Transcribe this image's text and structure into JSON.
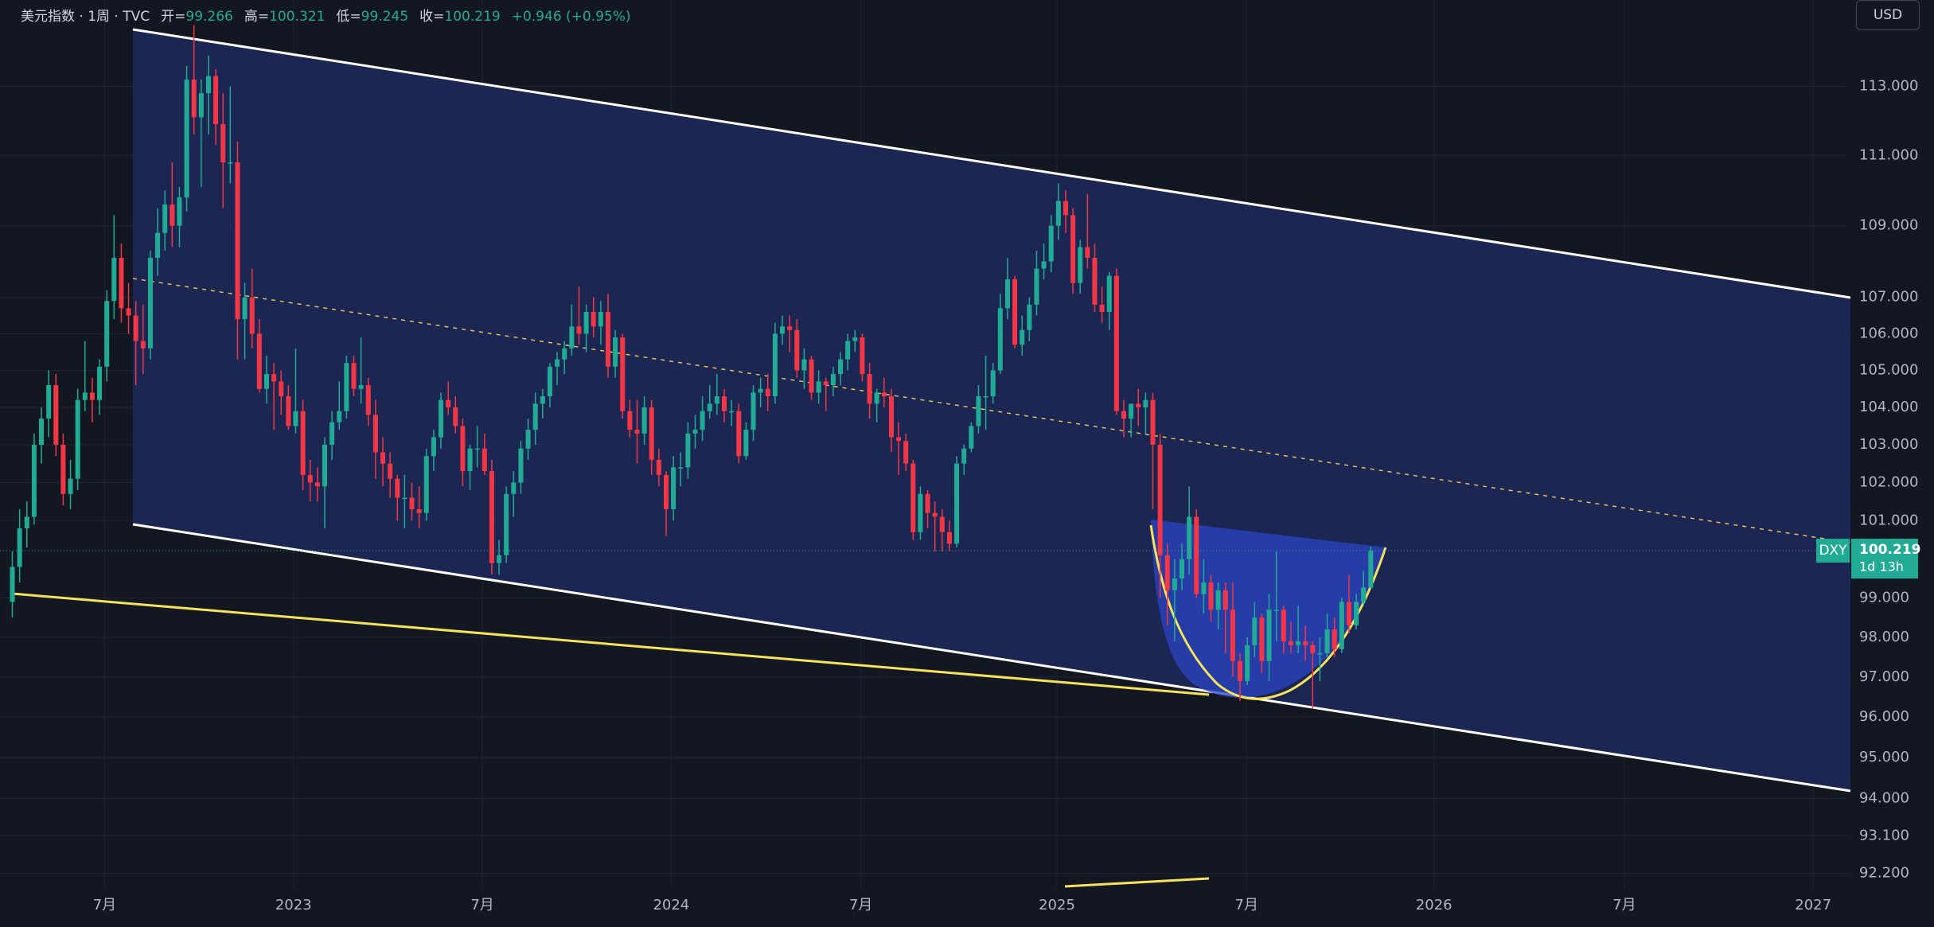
{
  "chart_data": {
    "type": "candlestick",
    "title": "美元指数 · 1周 · TVC",
    "ohlc_labels": [
      "开=",
      "高=",
      "低=",
      "收="
    ],
    "change_text": "+0.946 (+0.95%)",
    "currency": "USD",
    "symbol_tag": "DXY",
    "countdown": "1d 13h",
    "log": true,
    "grid": true,
    "up_color": "#22ab94",
    "down_color": "#f23645",
    "ylim": [
      91.85,
      115.55
    ],
    "yticks": [
      {
        "value": 113,
        "label": "113.000"
      },
      {
        "value": 111,
        "label": "111.000"
      },
      {
        "value": 109,
        "label": "109.000"
      },
      {
        "value": 107,
        "label": "107.000"
      },
      {
        "value": 106,
        "label": "106.000"
      },
      {
        "value": 105,
        "label": "105.000"
      },
      {
        "value": 104,
        "label": "104.000"
      },
      {
        "value": 103,
        "label": "103.000"
      },
      {
        "value": 102,
        "label": "102.000"
      },
      {
        "value": 101,
        "label": "101.000"
      },
      {
        "value": 99,
        "label": "99.000"
      },
      {
        "value": 98,
        "label": "98.000"
      },
      {
        "value": 97,
        "label": "97.000"
      },
      {
        "value": 96,
        "label": "96.000"
      },
      {
        "value": 95,
        "label": "95.000"
      },
      {
        "value": 94,
        "label": "94.000"
      },
      {
        "value": 93.1,
        "label": "93.100"
      },
      {
        "value": 92.2,
        "label": "92.200"
      }
    ],
    "xlim": [
      -1.7,
      252.7
    ],
    "xticks": [
      {
        "value": 12.7,
        "label": "7月"
      },
      {
        "value": 38.7,
        "label": "2023"
      },
      {
        "value": 64.7,
        "label": "7月"
      },
      {
        "value": 90.7,
        "label": "2024"
      },
      {
        "value": 116.8,
        "label": "7月"
      },
      {
        "value": 143.8,
        "label": "2025"
      },
      {
        "value": 169.9,
        "label": "7月"
      },
      {
        "value": 195.7,
        "label": "2026"
      },
      {
        "value": 221.9,
        "label": "7月"
      },
      {
        "value": 247.9,
        "label": "2027"
      }
    ],
    "candles": [
      [
        98.9,
        100.2,
        98.5,
        99.8
      ],
      [
        99.8,
        101.3,
        99.4,
        100.8
      ],
      [
        100.8,
        101.5,
        100.3,
        101.1
      ],
      [
        101.1,
        103.3,
        100.9,
        103.0
      ],
      [
        103.0,
        104.0,
        102.5,
        103.7
      ],
      [
        103.7,
        105.0,
        103.2,
        104.6
      ],
      [
        104.6,
        104.9,
        102.7,
        103.0
      ],
      [
        103.0,
        103.3,
        101.4,
        101.7
      ],
      [
        101.7,
        102.6,
        101.3,
        102.1
      ],
      [
        102.1,
        104.5,
        101.8,
        104.2
      ],
      [
        104.2,
        105.8,
        103.9,
        104.4
      ],
      [
        104.4,
        104.8,
        103.6,
        104.2
      ],
      [
        104.2,
        105.3,
        103.8,
        105.1
      ],
      [
        105.1,
        107.2,
        104.7,
        106.9
      ],
      [
        106.9,
        109.3,
        106.4,
        108.1
      ],
      [
        108.1,
        108.5,
        106.3,
        106.7
      ],
      [
        106.7,
        107.4,
        106.0,
        106.5
      ],
      [
        106.5,
        106.9,
        104.6,
        105.8
      ],
      [
        105.8,
        106.8,
        104.9,
        105.6
      ],
      [
        105.6,
        108.3,
        105.3,
        108.1
      ],
      [
        108.1,
        109.5,
        107.6,
        108.8
      ],
      [
        108.8,
        110.0,
        108.3,
        109.6
      ],
      [
        109.6,
        110.8,
        108.4,
        109.0
      ],
      [
        109.0,
        110.1,
        108.4,
        109.8
      ],
      [
        109.8,
        113.6,
        109.4,
        113.2
      ],
      [
        113.2,
        114.8,
        111.6,
        112.1
      ],
      [
        112.1,
        113.2,
        110.1,
        112.8
      ],
      [
        112.8,
        113.9,
        111.6,
        113.3
      ],
      [
        113.3,
        113.5,
        111.3,
        111.9
      ],
      [
        111.9,
        112.8,
        109.5,
        110.8
      ],
      [
        110.8,
        113.0,
        110.2,
        110.8
      ],
      [
        110.8,
        111.4,
        105.3,
        106.4
      ],
      [
        106.4,
        107.4,
        105.3,
        107.0
      ],
      [
        107.0,
        107.8,
        105.6,
        106.0
      ],
      [
        106.0,
        106.4,
        104.4,
        104.5
      ],
      [
        104.5,
        105.4,
        104.1,
        104.9
      ],
      [
        104.9,
        105.2,
        103.4,
        104.7
      ],
      [
        104.7,
        105.0,
        103.8,
        104.3
      ],
      [
        104.3,
        104.6,
        103.4,
        103.5
      ],
      [
        103.5,
        105.6,
        103.3,
        103.9
      ],
      [
        103.9,
        104.2,
        101.8,
        102.2
      ],
      [
        102.2,
        102.6,
        101.5,
        102.0
      ],
      [
        102.0,
        102.4,
        101.5,
        101.9
      ],
      [
        101.9,
        103.2,
        100.8,
        103.0
      ],
      [
        103.0,
        103.9,
        102.6,
        103.6
      ],
      [
        103.6,
        104.7,
        103.4,
        103.9
      ],
      [
        103.9,
        105.4,
        103.7,
        105.2
      ],
      [
        105.2,
        105.4,
        104.3,
        104.5
      ],
      [
        104.5,
        105.9,
        104.1,
        104.6
      ],
      [
        104.6,
        104.8,
        103.5,
        103.8
      ],
      [
        103.8,
        104.2,
        102.1,
        102.8
      ],
      [
        102.8,
        103.2,
        101.9,
        102.5
      ],
      [
        102.5,
        102.8,
        101.6,
        102.1
      ],
      [
        102.1,
        102.2,
        101.0,
        101.6
      ],
      [
        101.6,
        102.2,
        100.8,
        101.6
      ],
      [
        101.6,
        102.0,
        101.0,
        101.3
      ],
      [
        101.3,
        101.9,
        100.8,
        101.2
      ],
      [
        101.2,
        102.9,
        101.0,
        102.7
      ],
      [
        102.7,
        103.4,
        102.3,
        103.2
      ],
      [
        103.2,
        104.4,
        102.9,
        104.2
      ],
      [
        104.2,
        104.7,
        103.8,
        104.0
      ],
      [
        104.0,
        104.3,
        103.3,
        103.5
      ],
      [
        103.5,
        103.7,
        101.9,
        102.3
      ],
      [
        102.3,
        103.0,
        101.8,
        102.9
      ],
      [
        102.9,
        103.5,
        102.4,
        102.9
      ],
      [
        102.9,
        103.3,
        102.2,
        102.3
      ],
      [
        102.3,
        102.6,
        99.6,
        99.9
      ],
      [
        99.9,
        100.5,
        99.6,
        100.1
      ],
      [
        100.1,
        101.9,
        99.9,
        101.7
      ],
      [
        101.7,
        102.3,
        101.1,
        102.0
      ],
      [
        102.0,
        103.1,
        101.7,
        102.9
      ],
      [
        102.9,
        103.7,
        102.6,
        103.4
      ],
      [
        103.4,
        104.4,
        103.0,
        104.1
      ],
      [
        104.1,
        104.5,
        103.7,
        104.3
      ],
      [
        104.3,
        105.2,
        104.0,
        105.1
      ],
      [
        105.1,
        105.5,
        104.6,
        105.3
      ],
      [
        105.3,
        105.8,
        104.9,
        105.6
      ],
      [
        105.6,
        106.8,
        105.4,
        106.2
      ],
      [
        106.2,
        107.3,
        105.7,
        106.0
      ],
      [
        106.0,
        106.8,
        105.5,
        106.6
      ],
      [
        106.6,
        107.0,
        105.9,
        106.2
      ],
      [
        106.2,
        106.9,
        105.7,
        106.6
      ],
      [
        106.6,
        107.1,
        104.8,
        105.1
      ],
      [
        105.1,
        106.1,
        104.8,
        105.9
      ],
      [
        105.9,
        106.0,
        103.7,
        103.9
      ],
      [
        103.9,
        104.2,
        103.2,
        103.4
      ],
      [
        103.4,
        104.2,
        102.5,
        103.3
      ],
      [
        103.3,
        104.3,
        103.0,
        104.0
      ],
      [
        104.0,
        104.2,
        102.2,
        102.6
      ],
      [
        102.6,
        102.9,
        101.9,
        102.2
      ],
      [
        102.2,
        102.3,
        100.6,
        101.3
      ],
      [
        101.3,
        102.7,
        101.0,
        102.4
      ],
      [
        102.4,
        102.8,
        101.9,
        102.4
      ],
      [
        102.4,
        103.6,
        102.1,
        103.3
      ],
      [
        103.3,
        103.8,
        102.9,
        103.4
      ],
      [
        103.4,
        104.3,
        103.1,
        103.9
      ],
      [
        103.9,
        104.6,
        103.7,
        104.1
      ],
      [
        104.1,
        104.9,
        103.8,
        104.3
      ],
      [
        104.3,
        104.5,
        103.6,
        103.9
      ],
      [
        103.9,
        104.2,
        103.5,
        103.9
      ],
      [
        103.9,
        104.1,
        102.5,
        102.7
      ],
      [
        102.7,
        103.6,
        102.6,
        103.4
      ],
      [
        103.4,
        104.6,
        103.1,
        104.4
      ],
      [
        104.4,
        104.8,
        104.0,
        104.5
      ],
      [
        104.5,
        104.9,
        103.9,
        104.3
      ],
      [
        104.3,
        106.3,
        104.1,
        106.0
      ],
      [
        106.0,
        106.5,
        105.7,
        106.2
      ],
      [
        106.2,
        106.5,
        105.5,
        106.1
      ],
      [
        106.1,
        106.4,
        104.8,
        105.0
      ],
      [
        105.0,
        105.6,
        104.5,
        105.3
      ],
      [
        105.3,
        105.4,
        104.2,
        104.4
      ],
      [
        104.4,
        105.0,
        104.1,
        104.7
      ],
      [
        104.7,
        104.8,
        103.9,
        104.6
      ],
      [
        104.6,
        105.1,
        104.3,
        104.9
      ],
      [
        104.9,
        105.5,
        104.6,
        105.3
      ],
      [
        105.3,
        106.0,
        105.0,
        105.8
      ],
      [
        105.8,
        106.1,
        105.5,
        105.9
      ],
      [
        105.9,
        106.0,
        104.7,
        104.9
      ],
      [
        104.9,
        105.2,
        103.7,
        104.1
      ],
      [
        104.1,
        104.5,
        103.6,
        104.4
      ],
      [
        104.4,
        104.8,
        104.0,
        104.3
      ],
      [
        104.3,
        104.5,
        102.8,
        103.2
      ],
      [
        103.2,
        103.6,
        102.2,
        103.1
      ],
      [
        103.1,
        103.3,
        102.3,
        102.5
      ],
      [
        102.5,
        102.6,
        100.5,
        100.7
      ],
      [
        100.7,
        101.9,
        100.5,
        101.7
      ],
      [
        101.7,
        101.8,
        100.8,
        101.2
      ],
      [
        101.2,
        101.5,
        100.2,
        101.1
      ],
      [
        101.1,
        101.3,
        100.2,
        100.7
      ],
      [
        100.7,
        101.0,
        100.2,
        100.4
      ],
      [
        100.4,
        102.7,
        100.3,
        102.5
      ],
      [
        102.5,
        103.0,
        102.2,
        102.9
      ],
      [
        102.9,
        103.6,
        102.8,
        103.5
      ],
      [
        103.5,
        104.6,
        103.3,
        104.3
      ],
      [
        104.3,
        105.4,
        103.4,
        104.3
      ],
      [
        104.3,
        105.2,
        104.1,
        105.0
      ],
      [
        105.0,
        107.1,
        104.9,
        106.7
      ],
      [
        106.7,
        108.1,
        106.4,
        107.5
      ],
      [
        107.5,
        107.6,
        105.6,
        105.7
      ],
      [
        105.7,
        106.5,
        105.4,
        106.1
      ],
      [
        106.1,
        107.0,
        105.8,
        106.8
      ],
      [
        106.8,
        108.3,
        106.5,
        107.8
      ],
      [
        107.8,
        108.5,
        107.5,
        108.0
      ],
      [
        108.0,
        109.3,
        107.7,
        109.0
      ],
      [
        109.0,
        110.2,
        108.6,
        109.7
      ],
      [
        109.7,
        110.0,
        108.8,
        109.3
      ],
      [
        109.3,
        109.5,
        107.1,
        107.4
      ],
      [
        107.4,
        108.6,
        107.1,
        108.4
      ],
      [
        108.4,
        109.9,
        107.8,
        108.1
      ],
      [
        108.1,
        108.5,
        106.6,
        106.8
      ],
      [
        106.8,
        107.3,
        106.3,
        106.6
      ],
      [
        106.6,
        107.7,
        106.1,
        107.6
      ],
      [
        107.6,
        107.8,
        103.8,
        103.9
      ],
      [
        103.9,
        104.2,
        103.2,
        103.7
      ],
      [
        103.7,
        104.0,
        103.2,
        104.1
      ],
      [
        104.1,
        104.5,
        103.5,
        104.0
      ],
      [
        104.0,
        104.4,
        103.3,
        104.2
      ],
      [
        104.2,
        104.4,
        101.3,
        103.0
      ],
      [
        103.0,
        103.3,
        99.0,
        100.1
      ],
      [
        100.1,
        100.4,
        98.3,
        99.2
      ],
      [
        99.2,
        100.0,
        97.9,
        99.5
      ],
      [
        99.5,
        100.4,
        99.2,
        100.0
      ],
      [
        100.0,
        101.9,
        99.6,
        101.1
      ],
      [
        101.1,
        101.3,
        99.0,
        99.1
      ],
      [
        99.1,
        100.0,
        98.6,
        99.4
      ],
      [
        99.4,
        99.6,
        98.4,
        98.7
      ],
      [
        98.7,
        99.4,
        98.2,
        99.2
      ],
      [
        99.2,
        99.4,
        97.6,
        98.7
      ],
      [
        98.7,
        99.4,
        97.0,
        97.4
      ],
      [
        97.4,
        97.6,
        96.4,
        96.9
      ],
      [
        96.9,
        98.0,
        96.8,
        97.8
      ],
      [
        97.8,
        98.9,
        97.5,
        98.5
      ],
      [
        98.5,
        98.6,
        97.1,
        97.4
      ],
      [
        97.4,
        99.1,
        96.9,
        98.7
      ],
      [
        98.7,
        100.2,
        97.9,
        98.7
      ],
      [
        98.7,
        98.8,
        97.6,
        97.9
      ],
      [
        97.9,
        98.4,
        97.6,
        97.8
      ],
      [
        97.8,
        98.8,
        97.6,
        97.9
      ],
      [
        97.9,
        98.3,
        97.4,
        97.8
      ],
      [
        97.8,
        97.9,
        96.2,
        97.6
      ],
      [
        97.6,
        98.0,
        96.9,
        97.6
      ],
      [
        97.6,
        98.6,
        97.5,
        98.2
      ],
      [
        98.2,
        98.5,
        97.5,
        97.7
      ],
      [
        97.7,
        99.0,
        97.6,
        98.9
      ],
      [
        98.9,
        99.6,
        98.1,
        98.3
      ],
      [
        98.3,
        99.1,
        98.2,
        98.9
      ],
      [
        98.9,
        99.7,
        98.8,
        99.27
      ],
      [
        99.266,
        100.321,
        99.245,
        100.219
      ]
    ]
  }
}
